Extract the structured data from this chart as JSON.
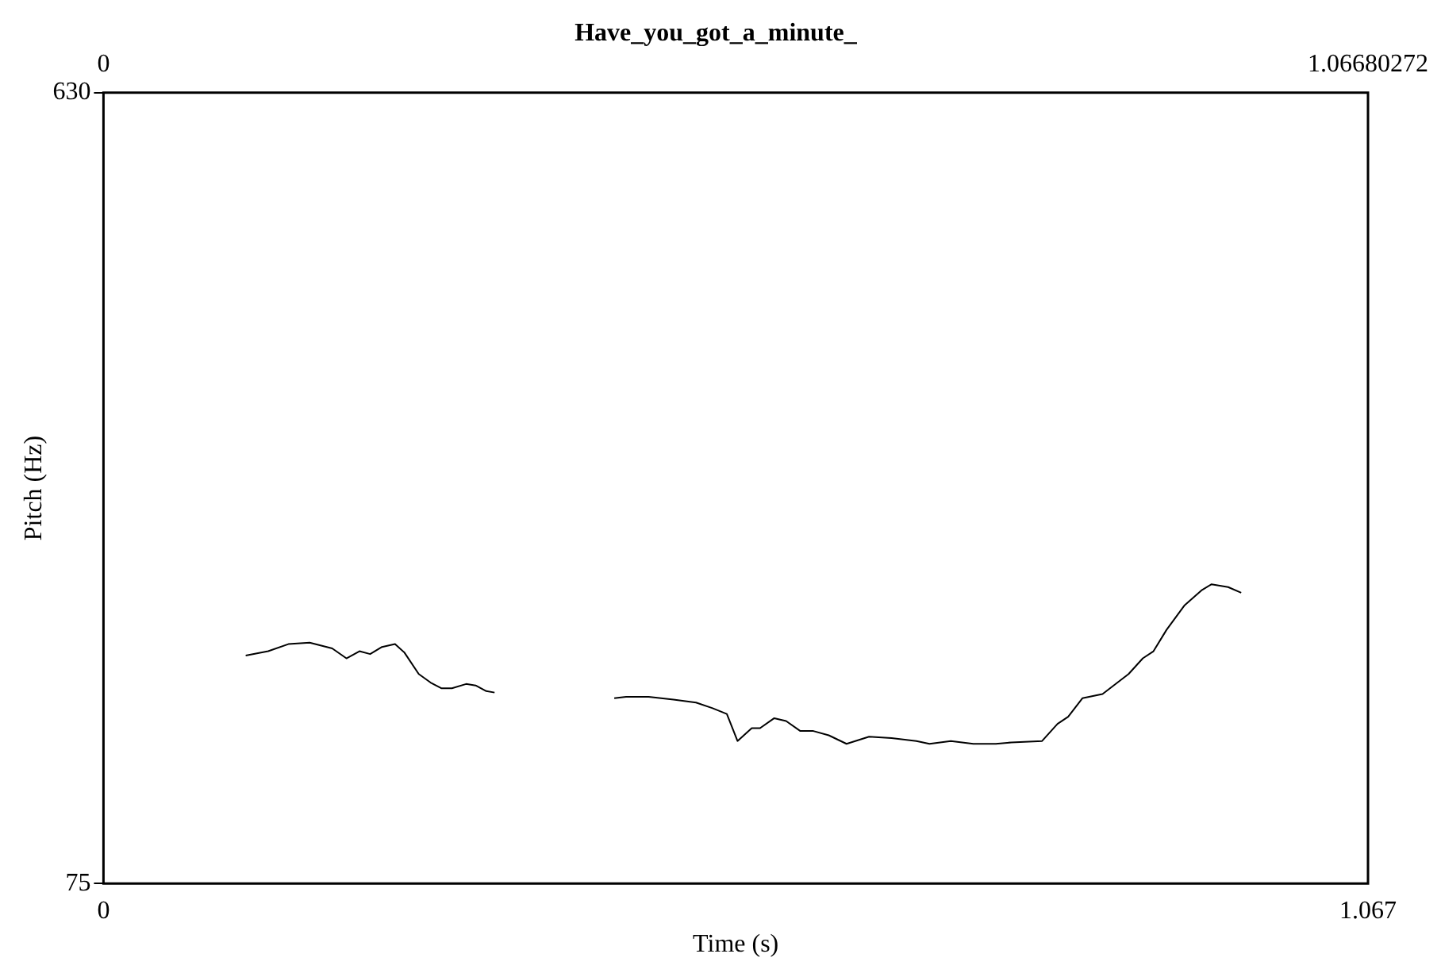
{
  "chart_data": {
    "type": "line",
    "title": "Have_you_got_a_minute_",
    "xlabel": "Time (s)",
    "ylabel": "Pitch (Hz)",
    "xlim": [
      0,
      1.067
    ],
    "xticks": [
      0,
      1.067
    ],
    "x2lim": [
      0,
      1.06680272
    ],
    "x2ticks": [
      0,
      1.06680272
    ],
    "ylim": [
      75,
      630
    ],
    "yticks": [
      75,
      630
    ],
    "grid": false,
    "legend": false,
    "marker": "none",
    "line_style": "solid",
    "series": [
      {
        "color": "#000000",
        "x": [
          0.12,
          0.139,
          0.156,
          0.174,
          0.193,
          0.205,
          0.216,
          0.225,
          0.235,
          0.246,
          0.254,
          0.266,
          0.276,
          0.285,
          0.294,
          0.306,
          0.314,
          0.323,
          0.33
        ],
        "values": [
          235,
          238,
          243,
          244,
          240,
          233,
          238,
          236,
          241,
          243,
          237,
          222,
          216,
          212,
          212,
          215,
          214,
          210,
          209
        ]
      },
      {
        "color": "#000000",
        "x": [
          0.431,
          0.441,
          0.46,
          0.481,
          0.5,
          0.514,
          0.526,
          0.535,
          0.547,
          0.554,
          0.566,
          0.576,
          0.588,
          0.599,
          0.612,
          0.627,
          0.646,
          0.665,
          0.686,
          0.697,
          0.715,
          0.734,
          0.753,
          0.766,
          0.792,
          0.805,
          0.814,
          0.826,
          0.843,
          0.865,
          0.877,
          0.886,
          0.897,
          0.912,
          0.927,
          0.935,
          0.949,
          0.96
        ],
        "values": [
          205,
          206,
          206,
          204,
          202,
          198,
          194,
          175,
          184,
          184,
          191,
          189,
          182,
          182,
          179,
          173,
          178,
          177,
          175,
          173,
          175,
          173,
          173,
          174,
          175,
          187,
          192,
          205,
          208,
          222,
          233,
          238,
          253,
          270,
          281,
          285,
          283,
          279
        ]
      }
    ]
  }
}
